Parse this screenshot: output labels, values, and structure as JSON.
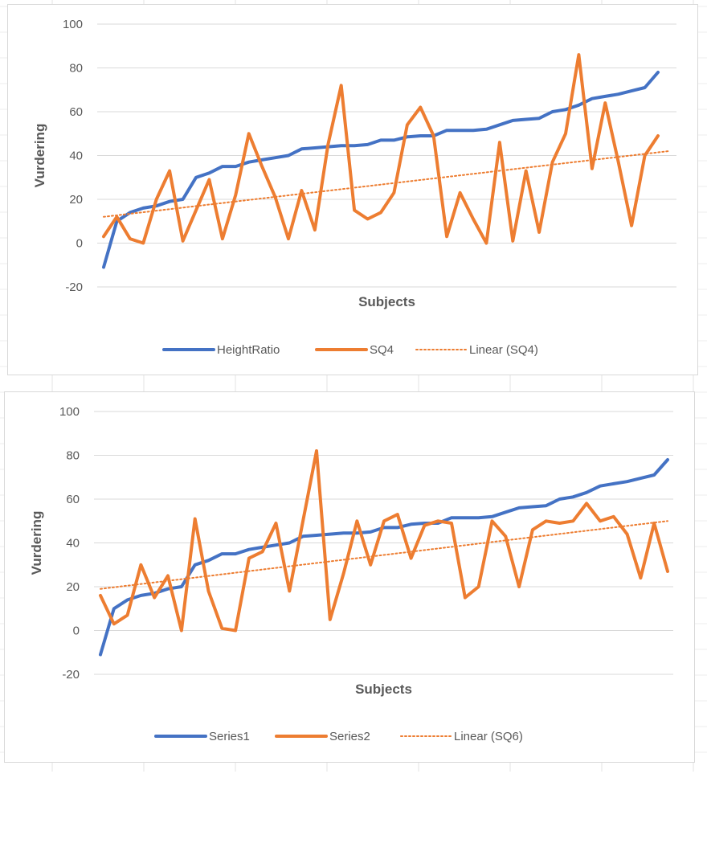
{
  "chart_data": [
    {
      "type": "line",
      "ylabel": "Vurdering",
      "xlabel": "Subjects",
      "ylim": [
        -20,
        100
      ],
      "yticks": [
        100,
        80,
        60,
        40,
        20,
        0,
        -20
      ],
      "grid": "horizontal",
      "legend_position": "bottom",
      "series": [
        {
          "name": "HeightRatio",
          "color": "#4472C4",
          "style": "solid",
          "values": [
            -11,
            10,
            14,
            16,
            17,
            19,
            20,
            30,
            32,
            35,
            35,
            37,
            38,
            39,
            40,
            43,
            43.5,
            44,
            44.5,
            44.5,
            45,
            47,
            47,
            48.5,
            49,
            49,
            51.5,
            51.5,
            51.5,
            52,
            54,
            56,
            56.5,
            57,
            60,
            61,
            63,
            66,
            67,
            68,
            69.5,
            71,
            78
          ]
        },
        {
          "name": "SQ4",
          "color": "#ED7D31",
          "style": "solid",
          "values": [
            3,
            12,
            2,
            0,
            20,
            33,
            1,
            15,
            29,
            2,
            22,
            50,
            35,
            21,
            2,
            24,
            6,
            45,
            72,
            15,
            11,
            14,
            23,
            54,
            62,
            49,
            3,
            23,
            11,
            0,
            46,
            1,
            33,
            5,
            37,
            50,
            86,
            34,
            64,
            37,
            8,
            40,
            49
          ]
        }
      ],
      "trendlines": [
        {
          "name": "Linear (SQ4)",
          "color": "#ED7D31",
          "style": "dotted",
          "start": 12,
          "end": 42
        }
      ]
    },
    {
      "type": "line",
      "ylabel": "Vurdering",
      "xlabel": "Subjects",
      "ylim": [
        -20,
        100
      ],
      "yticks": [
        100,
        80,
        60,
        40,
        20,
        0,
        -20
      ],
      "grid": "horizontal",
      "legend_position": "bottom",
      "series": [
        {
          "name": "Series1",
          "color": "#4472C4",
          "style": "solid",
          "values": [
            -11,
            10,
            14,
            16,
            17,
            19,
            20,
            30,
            32,
            35,
            35,
            37,
            38,
            39,
            40,
            43,
            43.5,
            44,
            44.5,
            44.5,
            45,
            47,
            47,
            48.5,
            49,
            49,
            51.5,
            51.5,
            51.5,
            52,
            54,
            56,
            56.5,
            57,
            60,
            61,
            63,
            66,
            67,
            68,
            69.5,
            71,
            78
          ]
        },
        {
          "name": "Series2",
          "color": "#ED7D31",
          "style": "solid",
          "values": [
            16,
            3,
            7,
            30,
            15,
            25,
            0,
            51,
            18,
            1,
            0,
            33,
            36,
            49,
            18,
            50,
            82,
            5,
            26,
            50,
            30,
            50,
            53,
            33,
            48,
            50,
            49,
            15,
            20,
            50,
            43,
            20,
            46,
            50,
            49,
            50,
            58,
            50,
            52,
            44,
            24,
            49,
            27
          ]
        }
      ],
      "trendlines": [
        {
          "name": "Linear   (SQ6)",
          "color": "#ED7D31",
          "style": "dotted",
          "start": 19,
          "end": 50
        }
      ]
    }
  ]
}
